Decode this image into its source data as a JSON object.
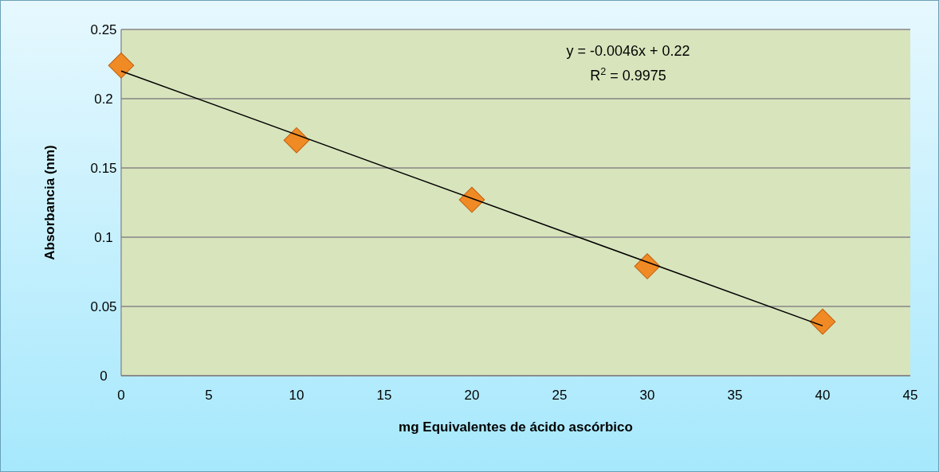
{
  "chart_data": {
    "type": "scatter",
    "xlabel": "mg Equivalentes de ácido ascórbico",
    "ylabel": "Absorbancia (nm)",
    "x": [
      0,
      10,
      20,
      30,
      40
    ],
    "series": [
      {
        "color": "#f08a24",
        "values": [
          0.224,
          0.17,
          0.127,
          0.079,
          0.039
        ],
        "marker": "diamond"
      },
      {
        "type": "line",
        "color": "#000000",
        "x": [
          0,
          40
        ],
        "values": [
          0.22,
          0.036
        ],
        "marker": "none"
      }
    ],
    "annotations": [
      "y = -0.0046x + 0.22",
      "R$^{2}$ = 0.9975"
    ],
    "xlim": [
      0,
      45
    ],
    "xticks": [
      0,
      5,
      10,
      15,
      20,
      25,
      30,
      35,
      40,
      45
    ],
    "ylim": [
      0,
      0.25
    ],
    "yticks": [
      0,
      0.05,
      0.1,
      0.15,
      0.2,
      0.25
    ],
    "grid": "y"
  }
}
